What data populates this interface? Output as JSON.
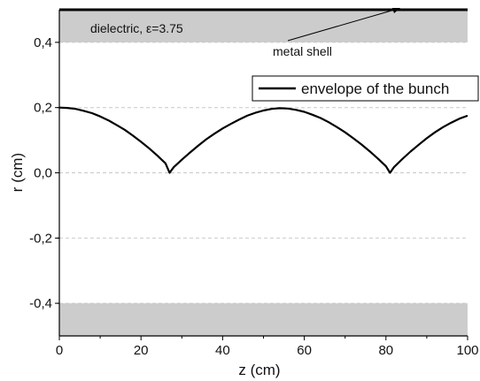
{
  "chart_data": {
    "type": "line",
    "title": "",
    "xlabel": "z (cm)",
    "ylabel": "r (cm)",
    "xlim": [
      0,
      100
    ],
    "ylim": [
      -0.5,
      0.5
    ],
    "x_ticks": [
      0,
      20,
      40,
      60,
      80,
      100
    ],
    "x_tick_labels": [
      "0",
      "20",
      "40",
      "60",
      "80",
      "100"
    ],
    "y_ticks": [
      -0.4,
      -0.2,
      0.0,
      0.2,
      0.4
    ],
    "y_tick_labels": [
      "-0,4",
      "-0,2",
      "0,0",
      "0,2",
      "0,4"
    ],
    "grid": "horizontal dashed lines at y ticks",
    "legend": {
      "position": "top-right",
      "entries": [
        "envelope of the bunch"
      ]
    },
    "regions": [
      {
        "name": "dielectric",
        "y_range": [
          0.4,
          0.5
        ],
        "color": "#cccccc",
        "label": "dielectric, ε=3.75"
      },
      {
        "name": "dielectric-lower",
        "y_range": [
          -0.5,
          -0.4
        ],
        "color": "#cccccc"
      }
    ],
    "metal_shell": {
      "y": 0.5,
      "label": "metal shell"
    },
    "series": [
      {
        "name": "envelope of the bunch",
        "color": "#000000",
        "x": [
          0,
          2,
          4,
          6,
          8,
          10,
          12,
          14,
          16,
          18,
          20,
          22,
          24,
          26,
          27,
          28,
          30,
          32,
          34,
          36,
          38,
          40,
          42,
          44,
          46,
          48,
          50,
          52,
          54,
          56,
          58,
          60,
          62,
          64,
          66,
          68,
          70,
          72,
          74,
          76,
          78,
          80,
          81,
          82,
          84,
          86,
          88,
          90,
          92,
          94,
          96,
          98,
          100
        ],
        "y": [
          0.2,
          0.199,
          0.196,
          0.19,
          0.183,
          0.173,
          0.161,
          0.147,
          0.132,
          0.114,
          0.095,
          0.075,
          0.053,
          0.029,
          0.0,
          0.017,
          0.04,
          0.062,
          0.083,
          0.103,
          0.12,
          0.136,
          0.15,
          0.163,
          0.175,
          0.184,
          0.191,
          0.196,
          0.198,
          0.197,
          0.193,
          0.187,
          0.178,
          0.168,
          0.155,
          0.14,
          0.124,
          0.106,
          0.087,
          0.066,
          0.044,
          0.02,
          0.0,
          0.018,
          0.042,
          0.065,
          0.086,
          0.106,
          0.124,
          0.14,
          0.154,
          0.166,
          0.175
        ]
      }
    ]
  }
}
